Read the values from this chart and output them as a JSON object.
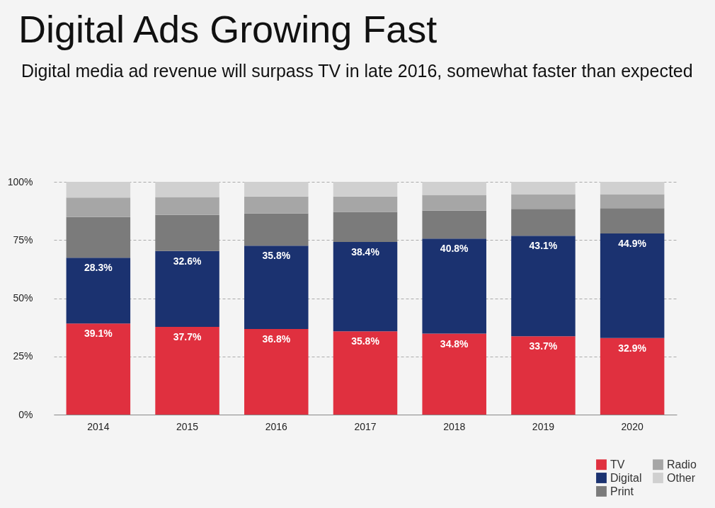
{
  "chart_data": {
    "type": "bar",
    "title": "Digital Ads Growing Fast",
    "subtitle": "Digital media ad revenue will surpass TV in late 2016, somewhat faster than expected",
    "categories": [
      "2014",
      "2015",
      "2016",
      "2017",
      "2018",
      "2019",
      "2020"
    ],
    "stacked": true,
    "series": [
      {
        "name": "TV",
        "color": "#e0303f",
        "values": [
          39.1,
          37.7,
          36.8,
          35.8,
          34.8,
          33.7,
          32.9
        ],
        "value_labels": [
          "39.1%",
          "37.7%",
          "36.8%",
          "35.8%",
          "34.8%",
          "33.7%",
          "32.9%"
        ]
      },
      {
        "name": "Digital",
        "color": "#1b3270",
        "values": [
          28.3,
          32.6,
          35.8,
          38.4,
          40.8,
          43.1,
          44.9
        ],
        "value_labels": [
          "28.3%",
          "32.6%",
          "35.8%",
          "38.4%",
          "40.8%",
          "43.1%",
          "44.9%"
        ]
      },
      {
        "name": "Print",
        "color": "#7b7b7b",
        "values": [
          17.5,
          15.5,
          13.8,
          12.9,
          12.0,
          11.6,
          10.9
        ]
      },
      {
        "name": "Radio",
        "color": "#a6a6a6",
        "values": [
          8.3,
          7.7,
          7.3,
          6.6,
          6.8,
          6.3,
          6.0
        ]
      },
      {
        "name": "Other",
        "color": "#d0d0d0",
        "values": [
          6.8,
          6.5,
          6.3,
          6.3,
          5.6,
          5.3,
          5.3
        ]
      }
    ],
    "ylim": [
      0,
      100
    ],
    "yticks": [
      {
        "value": 0,
        "label": "0%"
      },
      {
        "value": 25,
        "label": "25%"
      },
      {
        "value": 50,
        "label": "50%"
      },
      {
        "value": 75,
        "label": "75%"
      },
      {
        "value": 100,
        "label": "100%"
      }
    ],
    "grid": "y",
    "legend": "bottom right"
  }
}
